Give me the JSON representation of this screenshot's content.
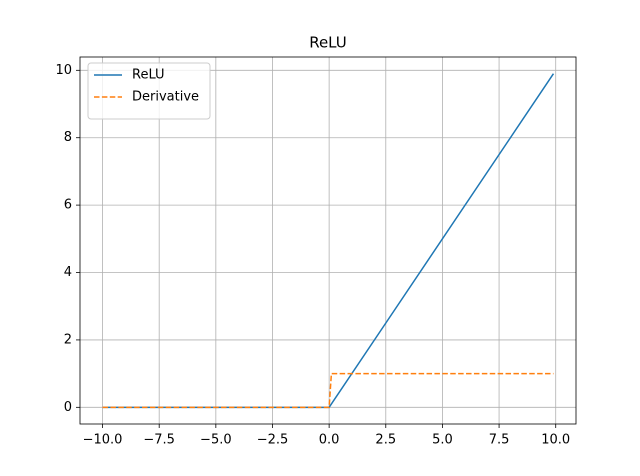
{
  "chart_data": {
    "type": "line",
    "title": "ReLU",
    "x": [
      -10,
      0,
      0.1,
      9.9
    ],
    "series": [
      {
        "name": "ReLU",
        "color": "#1f77b4",
        "linestyle": "solid",
        "values": [
          0,
          0,
          0.1,
          9.9
        ]
      },
      {
        "name": "Derivative",
        "color": "#ff7f0e",
        "linestyle": "dashed",
        "values": [
          0,
          0,
          1,
          1
        ]
      }
    ],
    "xlim": [
      -10.995,
      10.895
    ],
    "xticks": [
      {
        "value": -10,
        "label": "−10.0"
      },
      {
        "value": -7.5,
        "label": "−7.5"
      },
      {
        "value": -5,
        "label": "−5.0"
      },
      {
        "value": -2.5,
        "label": "−2.5"
      },
      {
        "value": 0,
        "label": "0.0"
      },
      {
        "value": 2.5,
        "label": "2.5"
      },
      {
        "value": 5,
        "label": "5.0"
      },
      {
        "value": 7.5,
        "label": "7.5"
      },
      {
        "value": 10,
        "label": "10.0"
      }
    ],
    "ylim": [
      -0.495,
      10.395
    ],
    "yticks": [
      0,
      2,
      4,
      6,
      8,
      10
    ],
    "grid": true,
    "legend": "upper-left"
  }
}
